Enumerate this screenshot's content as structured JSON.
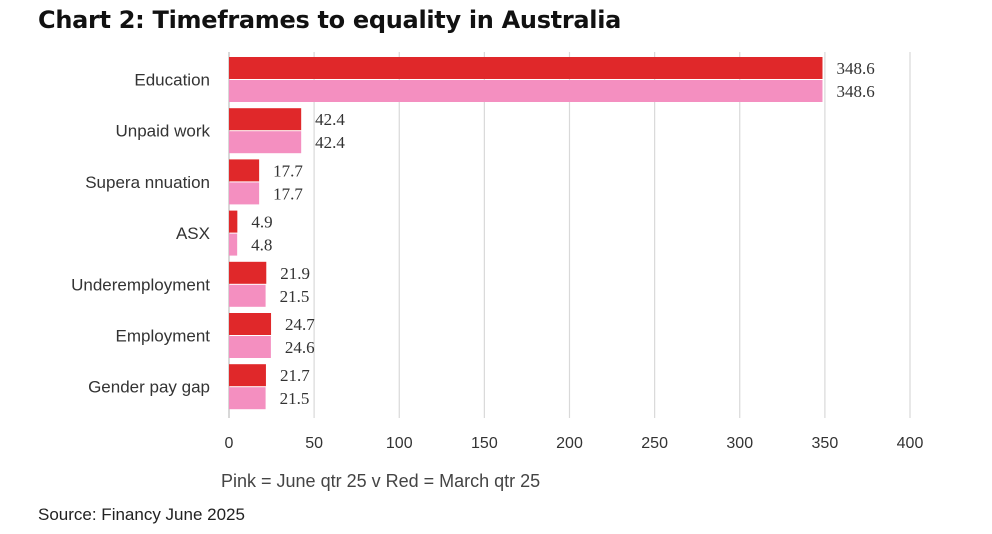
{
  "page": {
    "title": "Chart 2: Timeframes to equality in Australia",
    "source": "Source: Financy June 2025"
  },
  "chart_data": {
    "type": "bar",
    "orientation": "horizontal",
    "title": "Chart 2: Timeframes to equality in Australia",
    "categories": [
      "Education",
      "Unpaid work",
      "Superannuation",
      "ASX",
      "Underemployment",
      "Employment",
      "Gender pay gap"
    ],
    "category_labels": [
      "Education",
      "Unpaid work",
      "Supera nnuation",
      "ASX",
      "Underemployment",
      "Employment",
      "Gender pay gap"
    ],
    "series": [
      {
        "key": "march",
        "color": "#e0282a",
        "values": [
          348.6,
          42.4,
          17.7,
          4.9,
          21.9,
          24.7,
          21.7
        ]
      },
      {
        "key": "june",
        "color": "#f48fc0",
        "values": [
          348.6,
          42.4,
          17.7,
          4.8,
          21.5,
          24.6,
          21.5
        ]
      }
    ],
    "value_labels": [
      [
        "348.6",
        "42.4",
        "17.7",
        "4.9",
        "21.9",
        "24.7",
        "21.7"
      ],
      [
        "348.6",
        "42.4",
        "17.7",
        "4.8",
        "21.5",
        "24.6",
        "21.5"
      ]
    ],
    "xlim": [
      0,
      400
    ],
    "xticks": [
      0,
      50,
      100,
      150,
      200,
      250,
      300,
      350,
      400
    ],
    "grid": true,
    "legend_text": "Pink = June qtr 25 v Red = March qtr 25",
    "legend_placement": "bottom"
  }
}
